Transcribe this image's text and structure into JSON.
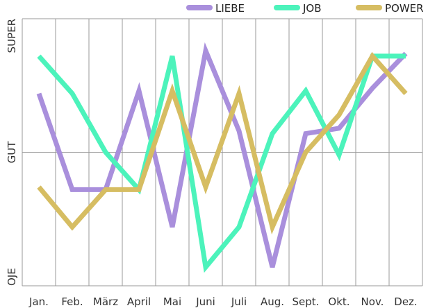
{
  "chart_data": {
    "type": "line",
    "categories": [
      "Jan.",
      "Feb.",
      "März",
      "April",
      "Mai",
      "Juni",
      "Juli",
      "Aug.",
      "Sept.",
      "Okt.",
      "Nov.",
      "Dez."
    ],
    "y_levels": [
      "OJE",
      "GUT",
      "SUPER"
    ],
    "ylim": [
      0,
      100
    ],
    "grid": true,
    "legend_position": "top-right",
    "series": [
      {
        "name": "LIEBE",
        "color": "#a98fdc",
        "values": [
          72,
          36,
          36,
          73,
          22,
          88,
          58,
          7,
          57,
          59,
          74,
          87
        ]
      },
      {
        "name": "JOB",
        "color": "#4cf3bb",
        "values": [
          86,
          72,
          50,
          36,
          86,
          7,
          22,
          57,
          73,
          49,
          86,
          86
        ]
      },
      {
        "name": "POWER",
        "color": "#d6bd62",
        "values": [
          37,
          22,
          36,
          36,
          73,
          37,
          72,
          22,
          50,
          64,
          86,
          72
        ]
      }
    ]
  }
}
